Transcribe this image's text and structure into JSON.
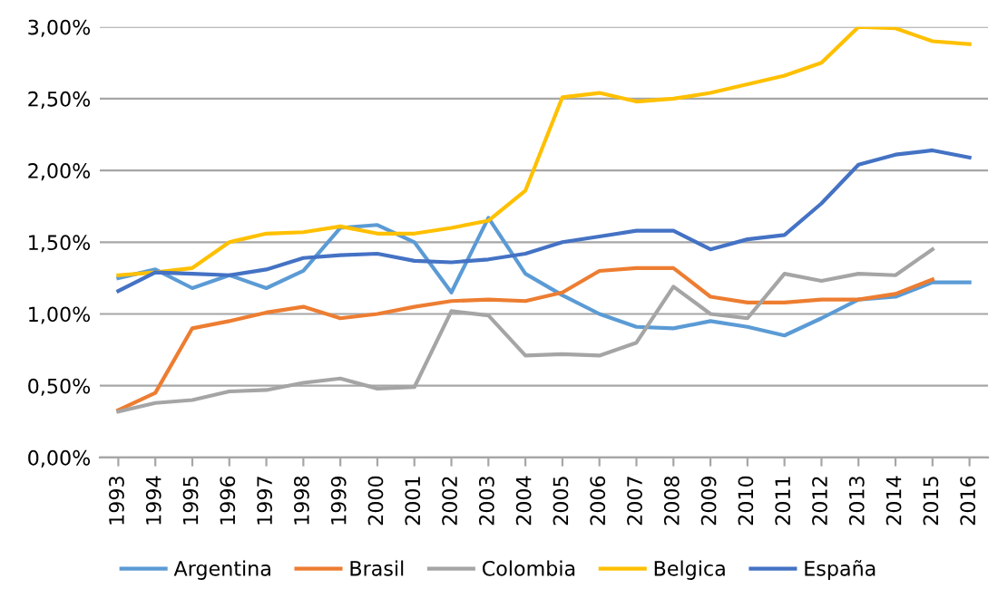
{
  "chart_data": {
    "type": "line",
    "categories": [
      "1993",
      "1994",
      "1995",
      "1996",
      "1997",
      "1998",
      "1999",
      "2000",
      "2001",
      "2002",
      "2003",
      "2004",
      "2005",
      "2006",
      "2007",
      "2008",
      "2009",
      "2010",
      "2011",
      "2012",
      "2013",
      "2014",
      "2015",
      "2016"
    ],
    "series": [
      {
        "name": "Argentina",
        "color": "#5b9bd5",
        "values": [
          1.25,
          1.31,
          1.18,
          1.27,
          1.18,
          1.3,
          1.6,
          1.62,
          1.5,
          1.15,
          1.67,
          1.28,
          1.13,
          1.0,
          0.91,
          0.9,
          0.95,
          0.91,
          0.85,
          0.97,
          1.1,
          1.12,
          1.22,
          1.22
        ]
      },
      {
        "name": "Brasil",
        "color": "#ed7d31",
        "values": [
          0.33,
          0.45,
          0.9,
          0.95,
          1.01,
          1.05,
          0.97,
          1.0,
          1.05,
          1.09,
          1.1,
          1.09,
          1.15,
          1.3,
          1.32,
          1.32,
          1.12,
          1.08,
          1.08,
          1.1,
          1.1,
          1.14,
          1.24,
          null
        ]
      },
      {
        "name": "Colombia",
        "color": "#a5a5a5",
        "values": [
          0.32,
          0.38,
          0.4,
          0.46,
          0.47,
          0.52,
          0.55,
          0.48,
          0.49,
          1.02,
          0.99,
          0.71,
          0.72,
          0.71,
          0.8,
          1.19,
          1.0,
          0.97,
          1.28,
          1.23,
          1.28,
          1.27,
          1.45,
          null
        ]
      },
      {
        "name": "Belgica",
        "color": "#ffc000",
        "values": [
          1.27,
          1.29,
          1.32,
          1.5,
          1.56,
          1.57,
          1.61,
          1.56,
          1.56,
          1.6,
          1.65,
          1.86,
          2.51,
          2.54,
          2.48,
          2.5,
          2.54,
          2.6,
          2.66,
          2.75,
          3.0,
          2.99,
          2.9,
          2.88
        ]
      },
      {
        "name": "España",
        "color": "#4472c4",
        "values": [
          1.16,
          1.29,
          1.28,
          1.27,
          1.31,
          1.39,
          1.41,
          1.42,
          1.37,
          1.36,
          1.38,
          1.42,
          1.5,
          1.54,
          1.58,
          1.58,
          1.45,
          1.52,
          1.55,
          1.77,
          2.04,
          2.11,
          2.14,
          2.09
        ]
      }
    ],
    "ylim": [
      0,
      3
    ],
    "yticks": [
      {
        "value": 0,
        "label": "0,00%"
      },
      {
        "value": 0.5,
        "label": "0,50%"
      },
      {
        "value": 1,
        "label": "1,00%"
      },
      {
        "value": 1.5,
        "label": "1,50%"
      },
      {
        "value": 2,
        "label": "2,00%"
      },
      {
        "value": 2.5,
        "label": "2,50%"
      },
      {
        "value": 3,
        "label": "3,00%"
      }
    ],
    "grid": "y",
    "legend": "bottom",
    "marker": "none",
    "line_style": "solid"
  }
}
